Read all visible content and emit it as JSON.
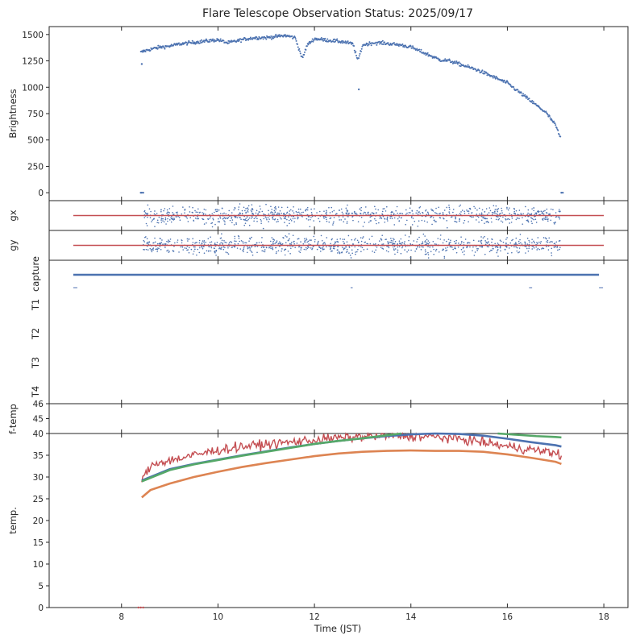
{
  "chart_data": {
    "type": "scatter",
    "title": "Flare Telescope Observation Status: 2025/09/17",
    "xlabel": "Time (JST)",
    "xlim": [
      6.5,
      18.5
    ],
    "xticks": [
      8,
      10,
      12,
      14,
      16,
      18
    ],
    "xtick_labels": [
      "8",
      "10",
      "12",
      "14",
      "16",
      "18"
    ],
    "colors": {
      "blue": "#4c72b0",
      "orange": "#dd8452",
      "green": "#55a868",
      "red": "#c44e52",
      "axis": "#262626"
    },
    "panels": [
      {
        "id": "brightness",
        "ylabel": "Brightness",
        "ylim": [
          -75,
          1575
        ],
        "yticks": [
          0,
          250,
          500,
          750,
          1000,
          1250,
          1500
        ],
        "ytick_labels": [
          "0",
          "250",
          "500",
          "750",
          "1000",
          "1250",
          "1500"
        ],
        "series": [
          {
            "color": "blue",
            "kind": "points",
            "x": [
              8.4,
              8.45,
              8.6,
              8.8,
              9.0,
              9.2,
              9.4,
              9.6,
              9.8,
              10.0,
              10.2,
              10.4,
              10.6,
              10.8,
              11.0,
              11.2,
              11.4,
              11.6,
              11.75,
              11.85,
              12.0,
              12.2,
              12.4,
              12.6,
              12.8,
              12.9,
              13.0,
              13.2,
              13.4,
              13.6,
              13.8,
              14.0,
              14.2,
              14.4,
              14.6,
              14.8,
              15.0,
              15.2,
              15.4,
              15.6,
              15.8,
              16.0,
              16.2,
              16.4,
              16.6,
              16.8,
              16.9,
              17.0,
              17.1
            ],
            "y": [
              1330,
              1340,
              1360,
              1380,
              1390,
              1410,
              1420,
              1430,
              1440,
              1450,
              1420,
              1440,
              1460,
              1470,
              1470,
              1480,
              1490,
              1470,
              1270,
              1400,
              1460,
              1450,
              1440,
              1430,
              1410,
              1250,
              1400,
              1420,
              1420,
              1410,
              1400,
              1380,
              1340,
              1300,
              1260,
              1250,
              1220,
              1190,
              1160,
              1120,
              1080,
              1040,
              970,
              900,
              830,
              760,
              700,
              640,
              520
            ]
          },
          {
            "color": "blue",
            "kind": "points",
            "x": [
              8.4,
              8.42,
              8.45
            ],
            "y": [
              0,
              0,
              0
            ]
          },
          {
            "color": "blue",
            "kind": "points",
            "x": [
              8.42
            ],
            "y": [
              1220
            ]
          },
          {
            "color": "blue",
            "kind": "points",
            "x": [
              12.92
            ],
            "y": [
              980
            ]
          },
          {
            "color": "blue",
            "kind": "points",
            "x": [
              17.12,
              17.15
            ],
            "y": [
              0,
              0
            ]
          }
        ]
      },
      {
        "id": "gx",
        "ylabel": "gx",
        "yticks": [],
        "series": [
          {
            "color": "blue",
            "kind": "noise",
            "x": [
              8.45,
              17.1
            ],
            "spread": 1.0
          },
          {
            "color": "red",
            "kind": "line",
            "x": [
              7.0,
              18.0
            ],
            "y": [
              0,
              0
            ]
          }
        ]
      },
      {
        "id": "gy",
        "ylabel": "gy",
        "yticks": [],
        "series": [
          {
            "color": "blue",
            "kind": "noise",
            "x": [
              8.45,
              17.1
            ],
            "spread": 1.0
          },
          {
            "color": "red",
            "kind": "line",
            "x": [
              7.0,
              18.0
            ],
            "y": [
              0,
              0
            ]
          }
        ]
      },
      {
        "id": "status",
        "ylabel": "",
        "ytick_labels": [
          "capture",
          "T1",
          "T2",
          "T3",
          "T4"
        ],
        "series": [
          {
            "color": "blue",
            "kind": "line",
            "label": "capture",
            "x": [
              7.0,
              17.9
            ],
            "y": [
              0,
              0
            ]
          }
        ]
      },
      {
        "id": "f-temp",
        "ylabel": "f-temp",
        "ylim": [
          44,
          46
        ],
        "yticks": [
          45,
          46
        ],
        "ytick_labels": [
          "45",
          "46"
        ],
        "series": []
      },
      {
        "id": "temp",
        "ylabel": "temp.",
        "ylim": [
          0,
          40
        ],
        "yticks": [
          0,
          5,
          10,
          15,
          20,
          25,
          30,
          35,
          40
        ],
        "ytick_labels": [
          "0",
          "5",
          "10",
          "15",
          "20",
          "25",
          "30",
          "35",
          "40"
        ],
        "series": [
          {
            "color": "red",
            "kind": "noisy-line",
            "x": [
              8.42,
              8.6,
              8.8,
              9.0,
              9.5,
              10.0,
              10.5,
              11.0,
              11.5,
              12.0,
              12.5,
              13.0,
              13.5,
              14.0,
              14.5,
              15.0,
              15.5,
              16.0,
              16.5,
              17.0,
              17.12
            ],
            "y": [
              29.0,
              32.5,
              33.5,
              33.8,
              35.0,
              36.2,
              37.0,
              37.5,
              38.0,
              38.5,
              39.0,
              39.3,
              39.5,
              39.4,
              39.2,
              38.8,
              38.0,
              37.0,
              36.3,
              35.5,
              35.0
            ]
          },
          {
            "color": "blue",
            "kind": "line",
            "x": [
              8.42,
              9.0,
              9.5,
              10.0,
              10.5,
              11.0,
              11.5,
              12.0,
              12.5,
              13.0,
              13.5,
              14.0,
              14.5,
              15.0,
              15.5,
              16.0,
              16.5,
              17.0,
              17.12
            ],
            "y": [
              29.2,
              31.8,
              33.0,
              34.0,
              35.0,
              35.9,
              36.8,
              37.6,
              38.3,
              38.9,
              39.4,
              39.8,
              40.0,
              39.9,
              39.5,
              38.8,
              38.0,
              37.3,
              37.0
            ]
          },
          {
            "color": "green",
            "kind": "line",
            "x": [
              8.42,
              9.0,
              9.5,
              10.0,
              10.5,
              11.0,
              11.5,
              12.0,
              12.5,
              13.0,
              13.5,
              13.8
            ],
            "y": [
              29.0,
              31.6,
              32.9,
              33.9,
              34.9,
              35.8,
              36.7,
              37.6,
              38.3,
              38.9,
              39.6,
              40.0
            ]
          },
          {
            "color": "green",
            "kind": "line",
            "x": [
              15.8,
              16.2,
              16.6,
              17.0,
              17.12
            ],
            "y": [
              40.0,
              39.7,
              39.4,
              39.2,
              39.1
            ]
          },
          {
            "color": "orange",
            "kind": "line",
            "x": [
              8.42,
              8.6,
              9.0,
              9.5,
              10.0,
              10.5,
              11.0,
              11.5,
              12.0,
              12.5,
              13.0,
              13.5,
              14.0,
              14.5,
              15.0,
              15.5,
              16.0,
              16.5,
              17.0,
              17.12
            ],
            "y": [
              25.3,
              27.0,
              28.5,
              30.0,
              31.2,
              32.3,
              33.2,
              34.0,
              34.8,
              35.4,
              35.8,
              36.0,
              36.1,
              36.0,
              36.0,
              35.8,
              35.2,
              34.4,
              33.5,
              33.0
            ]
          },
          {
            "color": "red",
            "kind": "points",
            "x": [
              8.35,
              8.4,
              8.45
            ],
            "y": [
              0,
              0,
              0
            ]
          }
        ]
      }
    ]
  }
}
